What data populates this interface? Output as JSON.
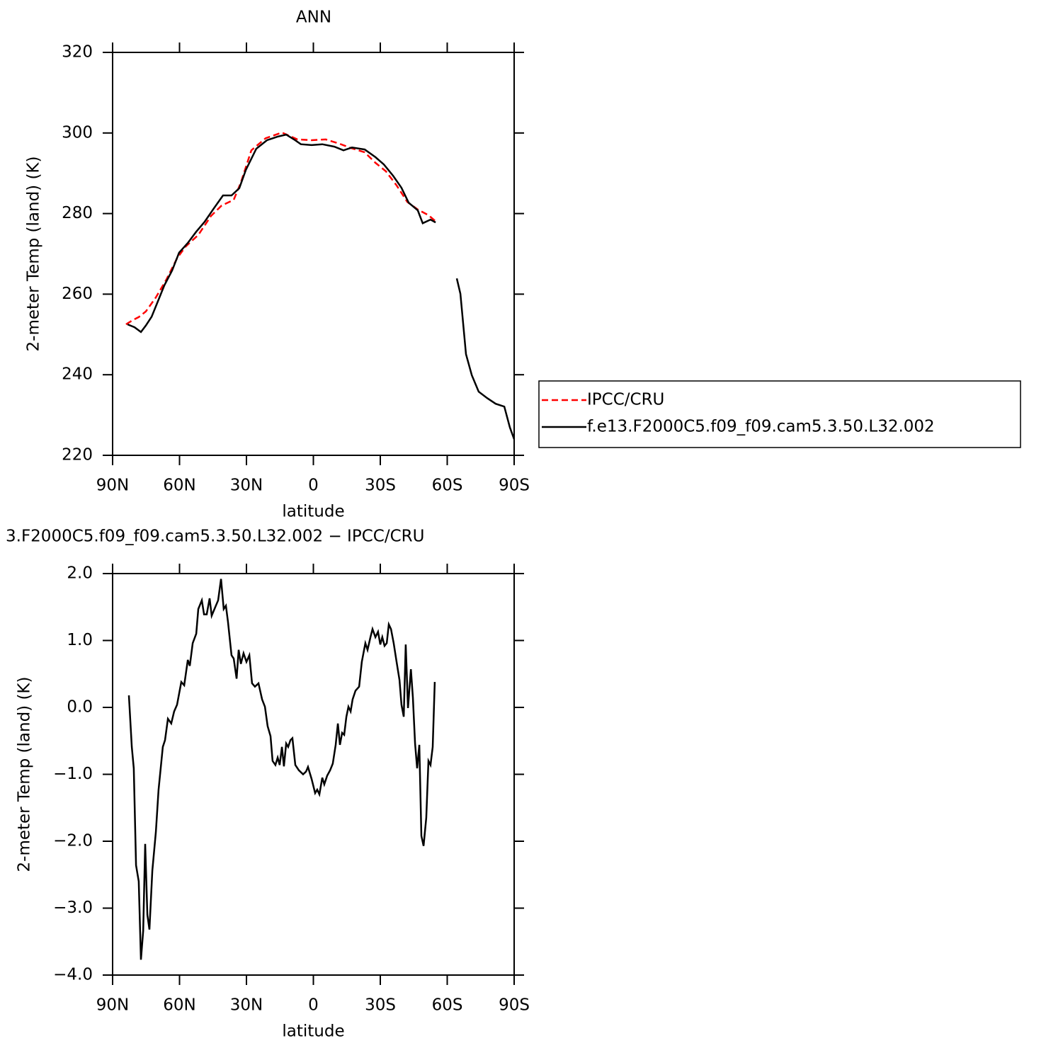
{
  "chart_data": [
    {
      "type": "line",
      "title": "ANN",
      "xlabel": "latitude",
      "ylabel": "2-meter Temp (land) (K)",
      "xlim": [
        90,
        -90
      ],
      "xticks": [
        {
          "value": 90,
          "label": "90N"
        },
        {
          "value": 60,
          "label": "60N"
        },
        {
          "value": 30,
          "label": "30N"
        },
        0,
        {
          "value": -30,
          "label": "30S"
        },
        {
          "value": -60,
          "label": "60S"
        },
        {
          "value": -90,
          "label": "90S"
        }
      ],
      "ylim": [
        220,
        320
      ],
      "yticks": [
        220,
        240,
        260,
        280,
        300,
        320
      ],
      "legend": "right",
      "series": [
        {
          "name": "IPCC/CRU",
          "color": "#ff0000",
          "line_style": "dashed",
          "x": [
            84,
            80.8,
            78.3,
            75.1,
            70.6,
            65.9,
            61.1,
            57.3,
            51.6,
            45.9,
            41.1,
            35.7,
            32.5,
            27.8,
            21.4,
            14.1,
            7.1,
            0.8,
            -5.6,
            -11.9,
            -16.7,
            -23,
            -27.8,
            -32.5,
            -37.3,
            -42.1,
            -46.8,
            -51.6,
            -55.4
          ],
          "values": [
            252.5,
            253.6,
            254.3,
            255.7,
            259.2,
            263.6,
            268.9,
            271.8,
            274.7,
            279.4,
            282.0,
            283.4,
            287.7,
            295.7,
            298.7,
            300.1,
            298.4,
            298.2,
            298.4,
            297.3,
            296.3,
            295.2,
            292.6,
            290.5,
            287.0,
            282.9,
            281.0,
            279.6,
            277.8
          ]
        },
        {
          "name": "f.e13.F2000C5.f09_f09.cam5.3.50.L32.002",
          "color": "#000000",
          "line_style": "solid",
          "x": [
            83.3,
            80.2,
            77.3,
            75.1,
            72.5,
            70,
            66.8,
            63.3,
            60.2,
            56.3,
            52.5,
            48.7,
            44.6,
            40.5,
            36.7,
            33.2,
            30.3,
            25.6,
            20.8,
            16,
            12.2,
            8.7,
            5.6,
            0.8,
            -4,
            -9.4,
            -13.5,
            -17.3,
            -23,
            -27.8,
            -31.6,
            -35.7,
            -39.5,
            -42.7,
            -46.8,
            -49,
            -52.5,
            -54.8,
            -60,
            -64.3,
            -65.9,
            -68.4,
            -71,
            -74.1,
            -77.9,
            -81.7,
            -85.6,
            -88.1,
            -90
          ],
          "values": [
            252.5,
            251.8,
            250.6,
            252.2,
            254.4,
            257.8,
            262.2,
            265.9,
            270.3,
            272.7,
            275.5,
            278.0,
            281.3,
            284.5,
            284.5,
            286.3,
            290.8,
            296.1,
            298.2,
            299.1,
            299.6,
            298.4,
            297.2,
            297.0,
            297.2,
            296.6,
            295.7,
            296.4,
            295.9,
            294.0,
            292.2,
            289.4,
            286.4,
            282.7,
            280.8,
            277.6,
            278.5,
            277.8,
            null,
            263.9,
            260.1,
            245.1,
            239.9,
            235.8,
            234.2,
            232.8,
            232.1,
            226.9,
            224.0
          ]
        }
      ]
    },
    {
      "type": "line",
      "title": "3.F2000C5.f09_f09.cam5.3.50.L32.002 − IPCC/CRU",
      "xlabel": "latitude",
      "ylabel": "2-meter Temp (land) (K)",
      "xlim": [
        90,
        -90
      ],
      "xticks": [
        {
          "value": 90,
          "label": "90N"
        },
        {
          "value": 60,
          "label": "60N"
        },
        {
          "value": 30,
          "label": "30N"
        },
        0,
        {
          "value": -30,
          "label": "30S"
        },
        {
          "value": -60,
          "label": "60S"
        },
        {
          "value": -90,
          "label": "90S"
        }
      ],
      "ylim": [
        -4,
        2
      ],
      "yticks": [
        {
          "value": -4,
          "label": "−4.0"
        },
        {
          "value": -3,
          "label": "−3.0"
        },
        {
          "value": -2,
          "label": "−2.0"
        },
        {
          "value": -1,
          "label": "−1.0"
        },
        {
          "value": 0,
          "label": "0.0"
        },
        {
          "value": 1,
          "label": "1.0"
        },
        {
          "value": 2,
          "label": "2.0"
        }
      ],
      "color": "#000000",
      "line_style": "solid",
      "x": [
        82.7,
        81.4,
        80.5,
        79.5,
        78.3,
        77.3,
        76.3,
        75.4,
        74.4,
        73.5,
        72.2,
        70.6,
        69.4,
        67.5,
        66.5,
        65.2,
        63.7,
        62.4,
        61.1,
        59.2,
        57.9,
        56.3,
        55.4,
        54.1,
        52.5,
        51.6,
        50,
        49,
        47.8,
        46.5,
        45.6,
        43.7,
        42.7,
        41.4,
        40.2,
        39.2,
        38.3,
        36.7,
        35.7,
        34.4,
        33.5,
        32.5,
        31.3,
        30,
        28.7,
        27.5,
        26.2,
        24.6,
        23,
        21.7,
        20.5,
        19.2,
        18.3,
        17,
        16,
        15.1,
        14.1,
        13.2,
        12.2,
        11.3,
        10.3,
        9.4,
        8.1,
        6.5,
        4.6,
        3.3,
        2.4,
        0.8,
        -0.8,
        -1.7,
        -2.7,
        -4,
        -4.9,
        -6.2,
        -7.5,
        -8.7,
        -10,
        -11,
        -11.9,
        -12.9,
        -13.8,
        -14.8,
        -15.7,
        -16.7,
        -17.6,
        -18.9,
        -20.5,
        -21.7,
        -23.3,
        -24.3,
        -25.6,
        -26.5,
        -27.8,
        -29,
        -30,
        -30.9,
        -31.9,
        -32.9,
        -33.8,
        -34.8,
        -36,
        -37.3,
        -38.6,
        -39.5,
        -40.5,
        -41.4,
        -42.4,
        -43.7,
        -44.6,
        -45.6,
        -46.5,
        -47.5,
        -48.4,
        -49.4,
        -50.6,
        -51.6,
        -52.5,
        -53.5,
        -54.4
      ],
      "values": [
        0.18,
        -0.59,
        -0.91,
        -2.36,
        -2.6,
        -3.77,
        -3.34,
        -2.04,
        -3.1,
        -3.32,
        -2.44,
        -1.86,
        -1.23,
        -0.59,
        -0.49,
        -0.17,
        -0.24,
        -0.06,
        0.04,
        0.38,
        0.33,
        0.71,
        0.62,
        0.96,
        1.1,
        1.47,
        1.6,
        1.39,
        1.39,
        1.63,
        1.37,
        1.52,
        1.6,
        1.92,
        1.47,
        1.52,
        1.28,
        0.78,
        0.73,
        0.43,
        0.86,
        0.65,
        0.81,
        0.68,
        0.78,
        0.36,
        0.31,
        0.36,
        0.12,
        0.01,
        -0.28,
        -0.43,
        -0.8,
        -0.86,
        -0.75,
        -0.86,
        -0.59,
        -0.88,
        -0.54,
        -0.59,
        -0.49,
        -0.46,
        -0.86,
        -0.94,
        -1.0,
        -0.96,
        -0.89,
        -1.07,
        -1.28,
        -1.23,
        -1.3,
        -1.05,
        -1.15,
        -1.02,
        -0.94,
        -0.84,
        -0.56,
        -0.24,
        -0.56,
        -0.38,
        -0.41,
        -0.14,
        0.01,
        -0.06,
        0.12,
        0.25,
        0.31,
        0.68,
        0.96,
        0.86,
        1.05,
        1.17,
        1.05,
        1.13,
        0.94,
        1.05,
        0.92,
        0.96,
        1.24,
        1.17,
        0.96,
        0.68,
        0.41,
        0.04,
        -0.14,
        0.94,
        -0.01,
        0.57,
        0.15,
        -0.54,
        -0.91,
        -0.56,
        -1.92,
        -2.07,
        -1.65,
        -0.8,
        -0.86,
        -0.59,
        0.38
      ]
    }
  ]
}
